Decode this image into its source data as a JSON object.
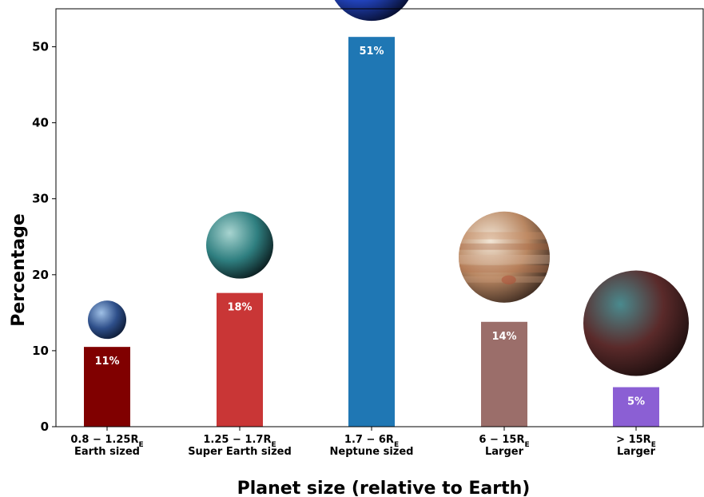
{
  "chart_data": {
    "type": "bar",
    "title": "",
    "xlabel": "Planet size (relative to Earth)",
    "ylabel": "Percentage",
    "ylim": [
      0,
      55
    ],
    "yticks": [
      0,
      10,
      20,
      30,
      40,
      50
    ],
    "grid": false,
    "categories": [
      {
        "line1": "0.8 − 1.25R",
        "sub": "E",
        "line2": "Earth sized"
      },
      {
        "line1": "1.25 − 1.7R",
        "sub": "E",
        "line2": "Super Earth sized"
      },
      {
        "line1": "1.7 − 6R",
        "sub": "E",
        "line2": "Neptune sized"
      },
      {
        "line1": "6 − 15R",
        "sub": "E",
        "line2": "Larger"
      },
      {
        "line1": "> 15R",
        "sub": "E",
        "line2": "Larger"
      }
    ],
    "values": [
      10.5,
      17.6,
      51.3,
      13.8,
      5.2
    ],
    "value_labels": [
      "11%",
      "18%",
      "51%",
      "14%",
      "5%"
    ],
    "colors": [
      "#800000",
      "#c93636",
      "#1f77b4",
      "#9b6e6a",
      "#8b5fd4"
    ],
    "planet_images": [
      {
        "icon": "earth-icon",
        "colors": [
          "#9fc0e6",
          "#2e4f8a",
          "#0d1a33"
        ]
      },
      {
        "icon": "super-earth-icon",
        "colors": [
          "#a8d4d0",
          "#2f7f80",
          "#0a1a1c"
        ]
      },
      {
        "icon": "neptune-icon",
        "colors": [
          "#6b95ff",
          "#2448c9",
          "#060c2a"
        ]
      },
      {
        "icon": "jupiter-icon",
        "colors": [
          "#f2e6d6",
          "#b98762",
          "#3c2a20"
        ]
      },
      {
        "icon": "hot-jupiter-icon",
        "colors": [
          "#4a8a8e",
          "#5a2a2a",
          "#1c0e0e"
        ]
      }
    ]
  }
}
